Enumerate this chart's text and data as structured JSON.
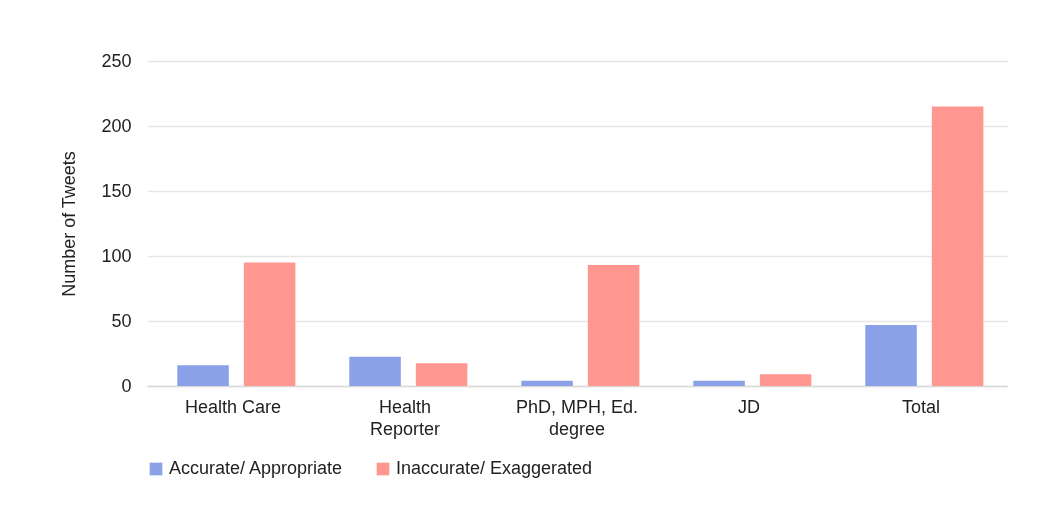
{
  "chart_data": {
    "type": "bar",
    "ylabel": "Number of Tweets",
    "categories": [
      "Health Care",
      "Health Reporter",
      "PhD, MPH, Ed. degree",
      "JD",
      "Total"
    ],
    "series": [
      {
        "name": "Accurate/ Appropriate",
        "color": "#8aa1e8",
        "values": [
          16,
          22.5,
          4,
          4,
          47
        ]
      },
      {
        "name": "Inaccurate/ Exaggerated",
        "color": "#ff9690",
        "values": [
          95,
          17.5,
          93,
          9,
          215
        ]
      }
    ],
    "ylim": [
      0,
      250
    ],
    "yticks": [
      0,
      50,
      100,
      150,
      200,
      250
    ],
    "grid": "y",
    "legend": "bottom"
  }
}
